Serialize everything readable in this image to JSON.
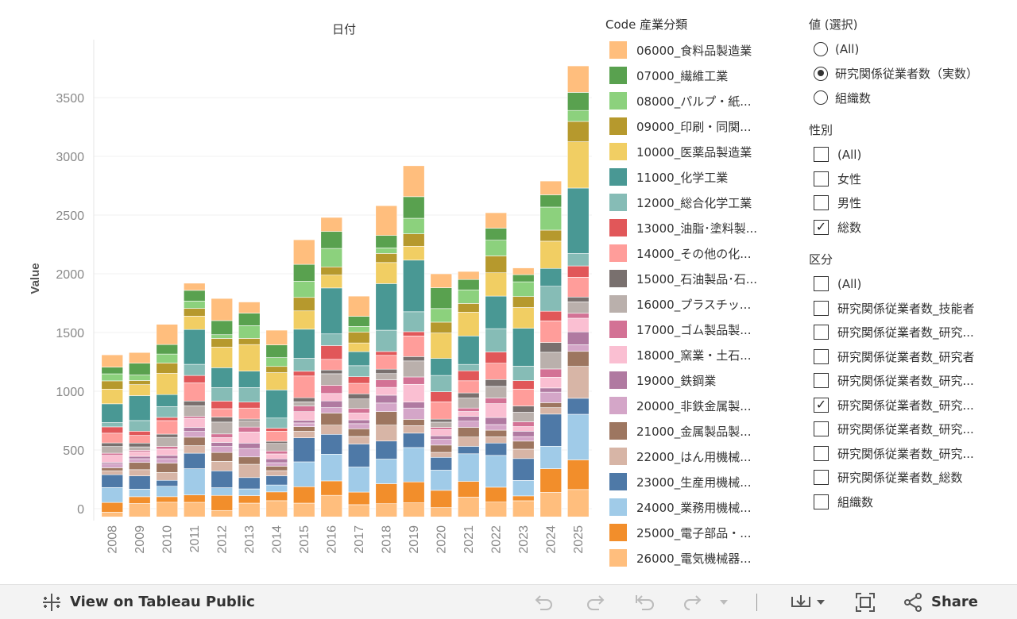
{
  "chart_data": {
    "type": "bar",
    "stacked": true,
    "title": "日付",
    "xlabel": "",
    "ylabel": "Value",
    "ylim": [
      0,
      3800
    ],
    "yticks": [
      0,
      500,
      1000,
      1500,
      2000,
      2500,
      3000,
      3500
    ],
    "grid": true,
    "categories": [
      "2008",
      "2009",
      "2010",
      "2011",
      "2012",
      "2013",
      "2014",
      "2015",
      "2016",
      "2017",
      "2018",
      "2019",
      "2020",
      "2021",
      "2022",
      "2023",
      "2024",
      "2025"
    ],
    "totals": [
      1310,
      1330,
      1570,
      1920,
      1790,
      1760,
      1520,
      2290,
      2480,
      1810,
      2580,
      2920,
      2000,
      2020,
      2520,
      2050,
      2790,
      3770
    ],
    "series": [
      {
        "name": "06000_食料品製造業",
        "color": "#ffbe7d"
      },
      {
        "name": "07000_繊維工業",
        "color": "#59a14f"
      },
      {
        "name": "08000_パルプ・紙...",
        "color": "#8cd17d"
      },
      {
        "name": "09000_印刷・同関...",
        "color": "#b6992d"
      },
      {
        "name": "10000_医薬品製造業",
        "color": "#f1ce63"
      },
      {
        "name": "11000_化学工業",
        "color": "#499894"
      },
      {
        "name": "12000_総合化学工業",
        "color": "#86bcb6"
      },
      {
        "name": "13000_油脂･塗料製...",
        "color": "#e15759"
      },
      {
        "name": "14000_その他の化...",
        "color": "#ff9d9a"
      },
      {
        "name": "15000_石油製品･石...",
        "color": "#79706e"
      },
      {
        "name": "16000_プラスチッ...",
        "color": "#bab0ac"
      },
      {
        "name": "17000_ゴム製品製...",
        "color": "#d37295"
      },
      {
        "name": "18000_窯業・土石...",
        "color": "#fabfd2"
      },
      {
        "name": "19000_鉄鋼業",
        "color": "#b07aa1"
      },
      {
        "name": "20000_非鉄金属製...",
        "color": "#d4a6c8"
      },
      {
        "name": "21000_金属製品製...",
        "color": "#9d7660"
      },
      {
        "name": "22000_はん用機械...",
        "color": "#d7b5a6"
      },
      {
        "name": "23000_生産用機械...",
        "color": "#4e79a7"
      },
      {
        "name": "24000_業務用機械...",
        "color": "#a0cbe8"
      },
      {
        "name": "25000_電子部品・...",
        "color": "#f28e2b"
      },
      {
        "name": "26000_電気機械器...",
        "color": "#ffbe7d"
      }
    ]
  },
  "legend": {
    "title": "Code 産業分類",
    "items": [
      {
        "label": "06000_食料品製造業",
        "color": "#ffbe7d"
      },
      {
        "label": "07000_繊維工業",
        "color": "#59a14f"
      },
      {
        "label": "08000_パルプ・紙...",
        "color": "#8cd17d"
      },
      {
        "label": "09000_印刷・同関...",
        "color": "#b6992d"
      },
      {
        "label": "10000_医薬品製造業",
        "color": "#f1ce63"
      },
      {
        "label": "11000_化学工業",
        "color": "#499894"
      },
      {
        "label": "12000_総合化学工業",
        "color": "#86bcb6"
      },
      {
        "label": "13000_油脂･塗料製...",
        "color": "#e15759"
      },
      {
        "label": "14000_その他の化...",
        "color": "#ff9d9a"
      },
      {
        "label": "15000_石油製品･石...",
        "color": "#79706e"
      },
      {
        "label": "16000_プラスチッ...",
        "color": "#bab0ac"
      },
      {
        "label": "17000_ゴム製品製...",
        "color": "#d37295"
      },
      {
        "label": "18000_窯業・土石...",
        "color": "#fabfd2"
      },
      {
        "label": "19000_鉄鋼業",
        "color": "#b07aa1"
      },
      {
        "label": "20000_非鉄金属製...",
        "color": "#d4a6c8"
      },
      {
        "label": "21000_金属製品製...",
        "color": "#9d7660"
      },
      {
        "label": "22000_はん用機械...",
        "color": "#d7b5a6"
      },
      {
        "label": "23000_生産用機械...",
        "color": "#4e79a7"
      },
      {
        "label": "24000_業務用機械...",
        "color": "#a0cbe8"
      },
      {
        "label": "25000_電子部品・...",
        "color": "#f28e2b"
      },
      {
        "label": "26000_電気機械器...",
        "color": "#ffbe7d"
      }
    ]
  },
  "filters": {
    "value": {
      "title": "値 (選択)",
      "options": [
        {
          "label": "(All)",
          "selected": false
        },
        {
          "label": "研究関係従業者数（実数）",
          "selected": true
        },
        {
          "label": "組織数",
          "selected": false
        }
      ]
    },
    "sex": {
      "title": "性別",
      "options": [
        {
          "label": "(All)",
          "checked": false
        },
        {
          "label": "女性",
          "checked": false
        },
        {
          "label": "男性",
          "checked": false
        },
        {
          "label": "総数",
          "checked": true
        }
      ]
    },
    "category": {
      "title": "区分",
      "options": [
        {
          "label": "(All)",
          "checked": false
        },
        {
          "label": "研究関係従業者数_技能者",
          "checked": false
        },
        {
          "label": "研究関係従業者数_研究...",
          "checked": false
        },
        {
          "label": "研究関係従業者数_研究者",
          "checked": false
        },
        {
          "label": "研究関係従業者数_研究...",
          "checked": false
        },
        {
          "label": "研究関係従業者数_研究...",
          "checked": true
        },
        {
          "label": "研究関係従業者数_研究...",
          "checked": false
        },
        {
          "label": "研究関係従業者数_研究...",
          "checked": false
        },
        {
          "label": "研究関係従業者数_総数",
          "checked": false
        },
        {
          "label": "組織数",
          "checked": false
        }
      ]
    }
  },
  "toolbar": {
    "view_label": "View on Tableau Public",
    "share_label": "Share"
  }
}
